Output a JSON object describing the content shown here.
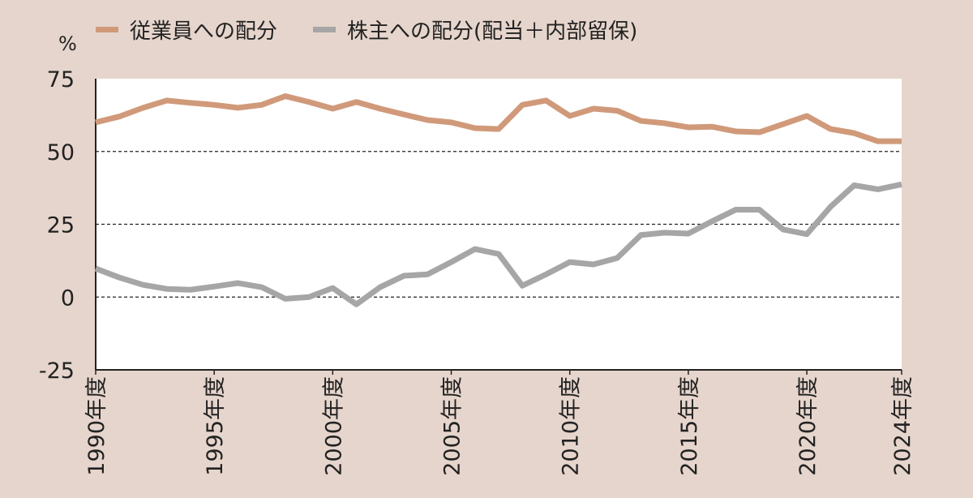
{
  "chart_data": {
    "type": "line",
    "unit_label": "%",
    "x": [
      1990,
      1991,
      1992,
      1993,
      1994,
      1995,
      1996,
      1997,
      1998,
      1999,
      2000,
      2001,
      2002,
      2003,
      2004,
      2005,
      2006,
      2007,
      2008,
      2009,
      2010,
      2011,
      2012,
      2013,
      2014,
      2015,
      2016,
      2017,
      2018,
      2019,
      2020,
      2021,
      2022,
      2023,
      2024
    ],
    "x_tick_labels": [
      {
        "year": 1990,
        "label": "1990年度"
      },
      {
        "year": 1995,
        "label": "1995年度"
      },
      {
        "year": 2000,
        "label": "2000年度"
      },
      {
        "year": 2005,
        "label": "2005年度"
      },
      {
        "year": 2010,
        "label": "2010年度"
      },
      {
        "year": 2015,
        "label": "2015年度"
      },
      {
        "year": 2020,
        "label": "2020年度"
      },
      {
        "year": 2024,
        "label": "2024年度"
      }
    ],
    "y_ticks": [
      75,
      50,
      25,
      0,
      -25
    ],
    "ylim": [
      -25,
      75
    ],
    "grid": "dashed horizontal at 0, 25, 50",
    "legend_position": "top",
    "series": [
      {
        "name": "従業員への配分",
        "color": "#d09a7a",
        "values": [
          60,
          62,
          65,
          67.5,
          66.7,
          66,
          65,
          66,
          69,
          67,
          64.7,
          67,
          64.7,
          62.7,
          60.8,
          60,
          58,
          57.7,
          66,
          67.5,
          62.2,
          64.7,
          64,
          60.5,
          59.7,
          58.3,
          58.5,
          56.9,
          56.6,
          59.4,
          62.2,
          57.7,
          56.3,
          53.5,
          53.5
        ]
      },
      {
        "name": "株主への配分(配当＋内部留保)",
        "color": "#a6a6a6",
        "values": [
          9.8,
          6.7,
          4.2,
          2.8,
          2.5,
          3.6,
          4.8,
          3.4,
          -0.6,
          0,
          3.1,
          -2.5,
          3.4,
          7.3,
          7.8,
          12,
          16.5,
          14.8,
          3.9,
          7.8,
          12,
          11.2,
          13.4,
          21.3,
          22.1,
          21.8,
          26,
          30,
          30,
          23.2,
          21.6,
          31,
          38.4,
          37,
          38.7
        ]
      }
    ]
  }
}
